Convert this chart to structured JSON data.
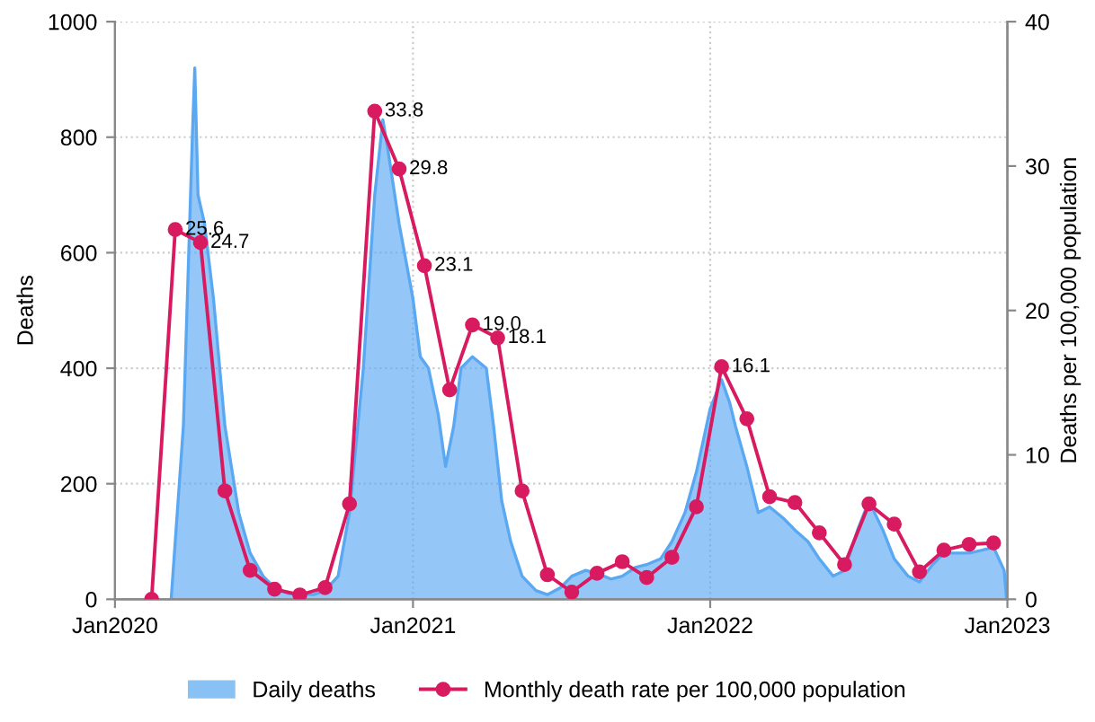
{
  "chart_data": {
    "type": "area",
    "ylabel": "Deaths",
    "y2label": "Deaths per 100,000 population",
    "xlim": [
      "2020-01-01",
      "2023-01-01"
    ],
    "xticks": [
      {
        "value": "2020-01-01",
        "label": "Jan2020"
      },
      {
        "value": "2021-01-01",
        "label": "Jan2021"
      },
      {
        "value": "2022-01-01",
        "label": "Jan2022"
      },
      {
        "value": "2023-01-01",
        "label": "Jan2023"
      }
    ],
    "ylim": [
      0,
      1000
    ],
    "yticks": [
      0,
      200,
      400,
      600,
      800,
      1000
    ],
    "y2lim": [
      0,
      40
    ],
    "y2ticks": [
      0,
      10,
      20,
      30,
      40
    ],
    "grid": true,
    "legend": "bottom",
    "series": [
      {
        "name": "Daily deaths",
        "color": "#5aa8f2",
        "x": [
          "2020-03-10",
          "2020-03-25",
          "2020-04-05",
          "2020-04-08",
          "2020-04-12",
          "2020-04-20",
          "2020-05-01",
          "2020-05-15",
          "2020-06-01",
          "2020-06-15",
          "2020-07-01",
          "2020-07-15",
          "2020-08-01",
          "2020-09-01",
          "2020-09-15",
          "2020-10-01",
          "2020-10-15",
          "2020-11-01",
          "2020-11-15",
          "2020-11-25",
          "2020-12-01",
          "2020-12-15",
          "2021-01-01",
          "2021-01-10",
          "2021-01-20",
          "2021-02-01",
          "2021-02-10",
          "2021-02-20",
          "2021-03-01",
          "2021-03-15",
          "2021-04-01",
          "2021-04-10",
          "2021-04-20",
          "2021-05-01",
          "2021-05-15",
          "2021-06-01",
          "2021-06-15",
          "2021-07-01",
          "2021-07-15",
          "2021-08-01",
          "2021-08-15",
          "2021-09-01",
          "2021-09-15",
          "2021-10-01",
          "2021-10-15",
          "2021-11-01",
          "2021-11-15",
          "2021-12-01",
          "2021-12-15",
          "2022-01-01",
          "2022-01-15",
          "2022-01-25",
          "2022-02-01",
          "2022-02-15",
          "2022-03-01",
          "2022-03-15",
          "2022-04-01",
          "2022-04-15",
          "2022-05-01",
          "2022-05-15",
          "2022-06-01",
          "2022-06-15",
          "2022-07-01",
          "2022-07-15",
          "2022-08-01",
          "2022-08-15",
          "2022-09-01",
          "2022-09-15",
          "2022-10-01",
          "2022-10-15",
          "2022-11-01",
          "2022-11-15",
          "2022-12-01",
          "2022-12-15",
          "2022-12-28",
          "2022-12-31"
        ],
        "values": [
          0,
          300,
          800,
          920,
          700,
          650,
          520,
          300,
          150,
          80,
          40,
          20,
          10,
          8,
          15,
          40,
          150,
          400,
          700,
          830,
          780,
          650,
          520,
          420,
          400,
          320,
          230,
          300,
          400,
          420,
          400,
          300,
          170,
          100,
          40,
          15,
          8,
          20,
          40,
          50,
          45,
          35,
          40,
          55,
          60,
          70,
          100,
          150,
          220,
          330,
          380,
          340,
          300,
          230,
          150,
          160,
          140,
          120,
          100,
          70,
          40,
          50,
          120,
          170,
          120,
          70,
          40,
          30,
          60,
          80,
          80,
          80,
          85,
          90,
          50,
          0
        ]
      },
      {
        "name": "Monthly death rate per 100,000 population",
        "type": "line",
        "axis": "y2",
        "color": "#d81b60",
        "marker": "circle",
        "x": [
          "2020-02-15",
          "2020-03-15",
          "2020-04-15",
          "2020-05-15",
          "2020-06-15",
          "2020-07-15",
          "2020-08-15",
          "2020-09-15",
          "2020-10-15",
          "2020-11-15",
          "2020-12-15",
          "2021-01-15",
          "2021-02-15",
          "2021-03-15",
          "2021-04-15",
          "2021-05-15",
          "2021-06-15",
          "2021-07-15",
          "2021-08-15",
          "2021-09-15",
          "2021-10-15",
          "2021-11-15",
          "2021-12-15",
          "2022-01-15",
          "2022-02-15",
          "2022-03-15",
          "2022-04-15",
          "2022-05-15",
          "2022-06-15",
          "2022-07-15",
          "2022-08-15",
          "2022-09-15",
          "2022-10-15",
          "2022-11-15",
          "2022-12-15"
        ],
        "values": [
          0,
          25.6,
          24.7,
          7.5,
          2.0,
          0.7,
          0.3,
          0.8,
          6.6,
          33.8,
          29.8,
          23.1,
          14.5,
          19.0,
          18.1,
          7.5,
          1.7,
          0.5,
          1.8,
          2.6,
          1.5,
          2.9,
          6.4,
          16.1,
          12.5,
          7.1,
          6.7,
          4.6,
          2.4,
          6.6,
          5.2,
          1.9,
          3.4,
          3.8,
          3.9
        ],
        "value_labels": [
          null,
          "25.6",
          "24.7",
          null,
          null,
          null,
          null,
          null,
          null,
          "33.8",
          "29.8",
          "23.1",
          null,
          "19.0",
          "18.1",
          null,
          null,
          null,
          null,
          null,
          null,
          null,
          null,
          "16.1",
          null,
          null,
          null,
          null,
          null,
          null,
          null,
          null,
          null,
          null,
          null
        ]
      }
    ]
  }
}
